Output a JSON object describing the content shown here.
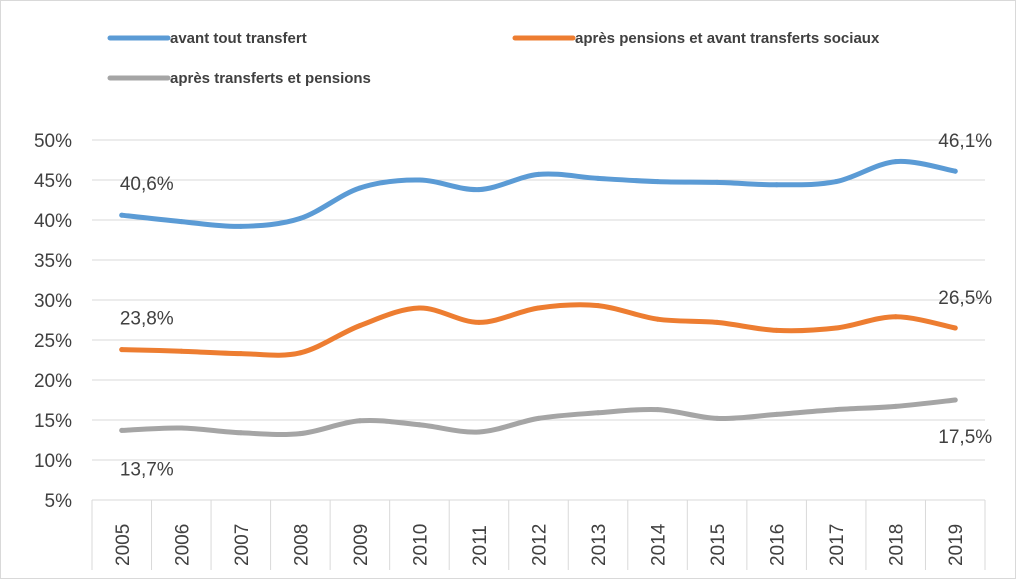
{
  "chart_data": {
    "type": "line",
    "title": "",
    "xlabel": "",
    "ylabel": "",
    "x": [
      "2005",
      "2006",
      "2007",
      "2008",
      "2009",
      "2010",
      "2011",
      "2012",
      "2013",
      "2014",
      "2015",
      "2016",
      "2017",
      "2018",
      "2019"
    ],
    "y_ticks": [
      "5%",
      "10%",
      "15%",
      "20%",
      "25%",
      "30%",
      "35%",
      "40%",
      "45%",
      "50%"
    ],
    "ylim": [
      5,
      50
    ],
    "grid": true,
    "legend_position": "top",
    "series": [
      {
        "name": "avant tout transfert",
        "color": "#5b9bd5",
        "values": [
          40.6,
          39.8,
          39.2,
          40.2,
          44.0,
          45.0,
          43.8,
          45.7,
          45.2,
          44.8,
          44.7,
          44.4,
          44.8,
          47.3,
          46.1
        ],
        "labels": [
          {
            "index": 0,
            "text": "40,6%"
          },
          {
            "index": 14,
            "text": "46,1%"
          }
        ]
      },
      {
        "name": "après pensions et avant transferts sociaux",
        "color": "#ed7d31",
        "values": [
          23.8,
          23.6,
          23.3,
          23.4,
          26.8,
          29.0,
          27.2,
          29.0,
          29.3,
          27.6,
          27.2,
          26.2,
          26.5,
          27.9,
          26.5
        ],
        "labels": [
          {
            "index": 0,
            "text": "23,8%"
          },
          {
            "index": 14,
            "text": "26,5%"
          }
        ]
      },
      {
        "name": "après transferts et pensions",
        "color": "#a5a5a5",
        "values": [
          13.7,
          14.0,
          13.4,
          13.3,
          14.9,
          14.4,
          13.5,
          15.2,
          15.9,
          16.3,
          15.2,
          15.7,
          16.3,
          16.7,
          17.5
        ],
        "labels": [
          {
            "index": 0,
            "text": "13,7%"
          },
          {
            "index": 14,
            "text": "17,5%"
          }
        ]
      }
    ]
  }
}
